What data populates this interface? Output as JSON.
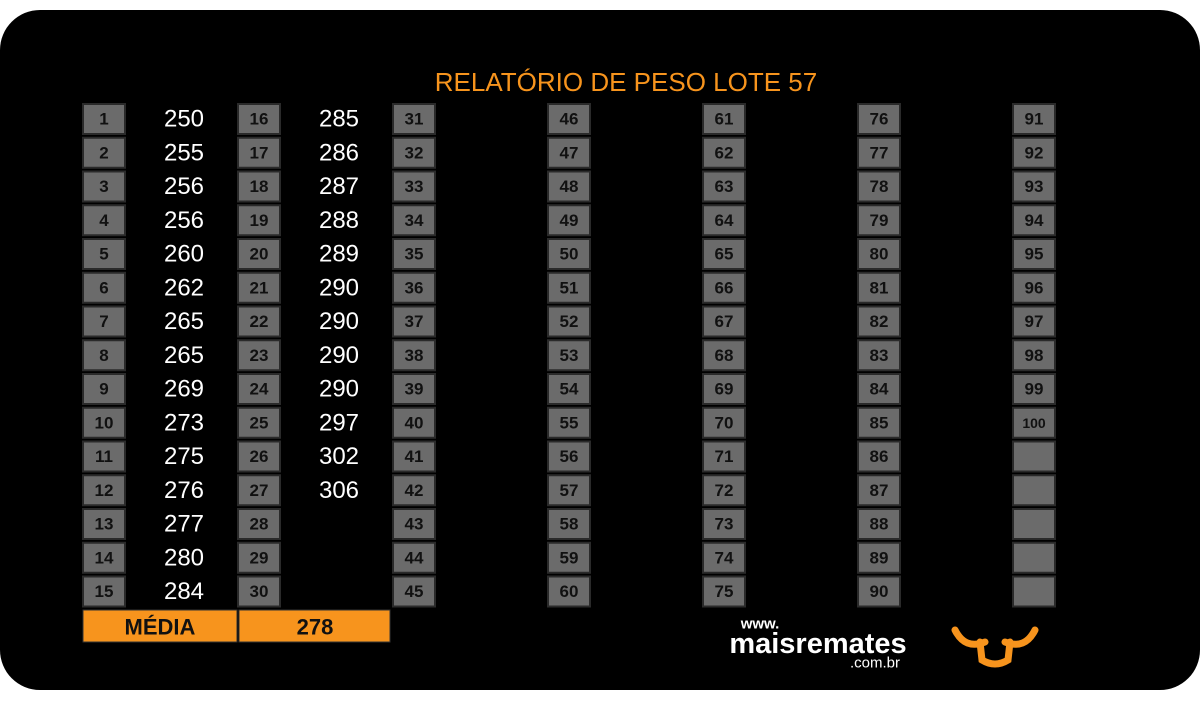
{
  "title": "RELATÓRIO DE PESO LOTE 57",
  "groups": [
    {
      "rows": [
        {
          "number": 1,
          "weight": 250
        },
        {
          "number": 2,
          "weight": 255
        },
        {
          "number": 3,
          "weight": 256
        },
        {
          "number": 4,
          "weight": 256
        },
        {
          "number": 5,
          "weight": 260
        },
        {
          "number": 6,
          "weight": 262
        },
        {
          "number": 7,
          "weight": 265
        },
        {
          "number": 8,
          "weight": 265
        },
        {
          "number": 9,
          "weight": 269
        },
        {
          "number": 10,
          "weight": 273
        },
        {
          "number": 11,
          "weight": 275
        },
        {
          "number": 12,
          "weight": 276
        },
        {
          "number": 13,
          "weight": 277
        },
        {
          "number": 14,
          "weight": 280
        },
        {
          "number": 15,
          "weight": 284
        }
      ]
    },
    {
      "rows": [
        {
          "number": 16,
          "weight": 285
        },
        {
          "number": 17,
          "weight": 286
        },
        {
          "number": 18,
          "weight": 287
        },
        {
          "number": 19,
          "weight": 288
        },
        {
          "number": 20,
          "weight": 289
        },
        {
          "number": 21,
          "weight": 290
        },
        {
          "number": 22,
          "weight": 290
        },
        {
          "number": 23,
          "weight": 290
        },
        {
          "number": 24,
          "weight": 290
        },
        {
          "number": 25,
          "weight": 297
        },
        {
          "number": 26,
          "weight": 302
        },
        {
          "number": 27,
          "weight": 306
        },
        {
          "number": 28
        },
        {
          "number": 29
        },
        {
          "number": 30
        }
      ]
    },
    {
      "rows": [
        {
          "number": 31
        },
        {
          "number": 32
        },
        {
          "number": 33
        },
        {
          "number": 34
        },
        {
          "number": 35
        },
        {
          "number": 36
        },
        {
          "number": 37
        },
        {
          "number": 38
        },
        {
          "number": 39
        },
        {
          "number": 40
        },
        {
          "number": 41
        },
        {
          "number": 42
        },
        {
          "number": 43
        },
        {
          "number": 44
        },
        {
          "number": 45
        }
      ]
    },
    {
      "rows": [
        {
          "number": 46
        },
        {
          "number": 47
        },
        {
          "number": 48
        },
        {
          "number": 49
        },
        {
          "number": 50
        },
        {
          "number": 51
        },
        {
          "number": 52
        },
        {
          "number": 53
        },
        {
          "number": 54
        },
        {
          "number": 55
        },
        {
          "number": 56
        },
        {
          "number": 57
        },
        {
          "number": 58
        },
        {
          "number": 59
        },
        {
          "number": 60
        }
      ]
    },
    {
      "rows": [
        {
          "number": 61
        },
        {
          "number": 62
        },
        {
          "number": 63
        },
        {
          "number": 64
        },
        {
          "number": 65
        },
        {
          "number": 66
        },
        {
          "number": 67
        },
        {
          "number": 68
        },
        {
          "number": 69
        },
        {
          "number": 70
        },
        {
          "number": 71
        },
        {
          "number": 72
        },
        {
          "number": 73
        },
        {
          "number": 74
        },
        {
          "number": 75
        }
      ]
    },
    {
      "rows": [
        {
          "number": 76
        },
        {
          "number": 77
        },
        {
          "number": 78
        },
        {
          "number": 79
        },
        {
          "number": 80
        },
        {
          "number": 81
        },
        {
          "number": 82
        },
        {
          "number": 83
        },
        {
          "number": 84
        },
        {
          "number": 85
        },
        {
          "number": 86
        },
        {
          "number": 87
        },
        {
          "number": 88
        },
        {
          "number": 89
        },
        {
          "number": 90
        }
      ]
    },
    {
      "rows": [
        {
          "number": 91
        },
        {
          "number": 92
        },
        {
          "number": 93
        },
        {
          "number": 94
        },
        {
          "number": 95
        },
        {
          "number": 96
        },
        {
          "number": 97
        },
        {
          "number": 98
        },
        {
          "number": 99
        },
        {
          "number": 100
        }
      ]
    }
  ],
  "average": {
    "label": "MÉDIA",
    "value": 278
  },
  "logo": {
    "prefix": "www.",
    "name": "maisremates",
    "suffix": ".com.br"
  }
}
